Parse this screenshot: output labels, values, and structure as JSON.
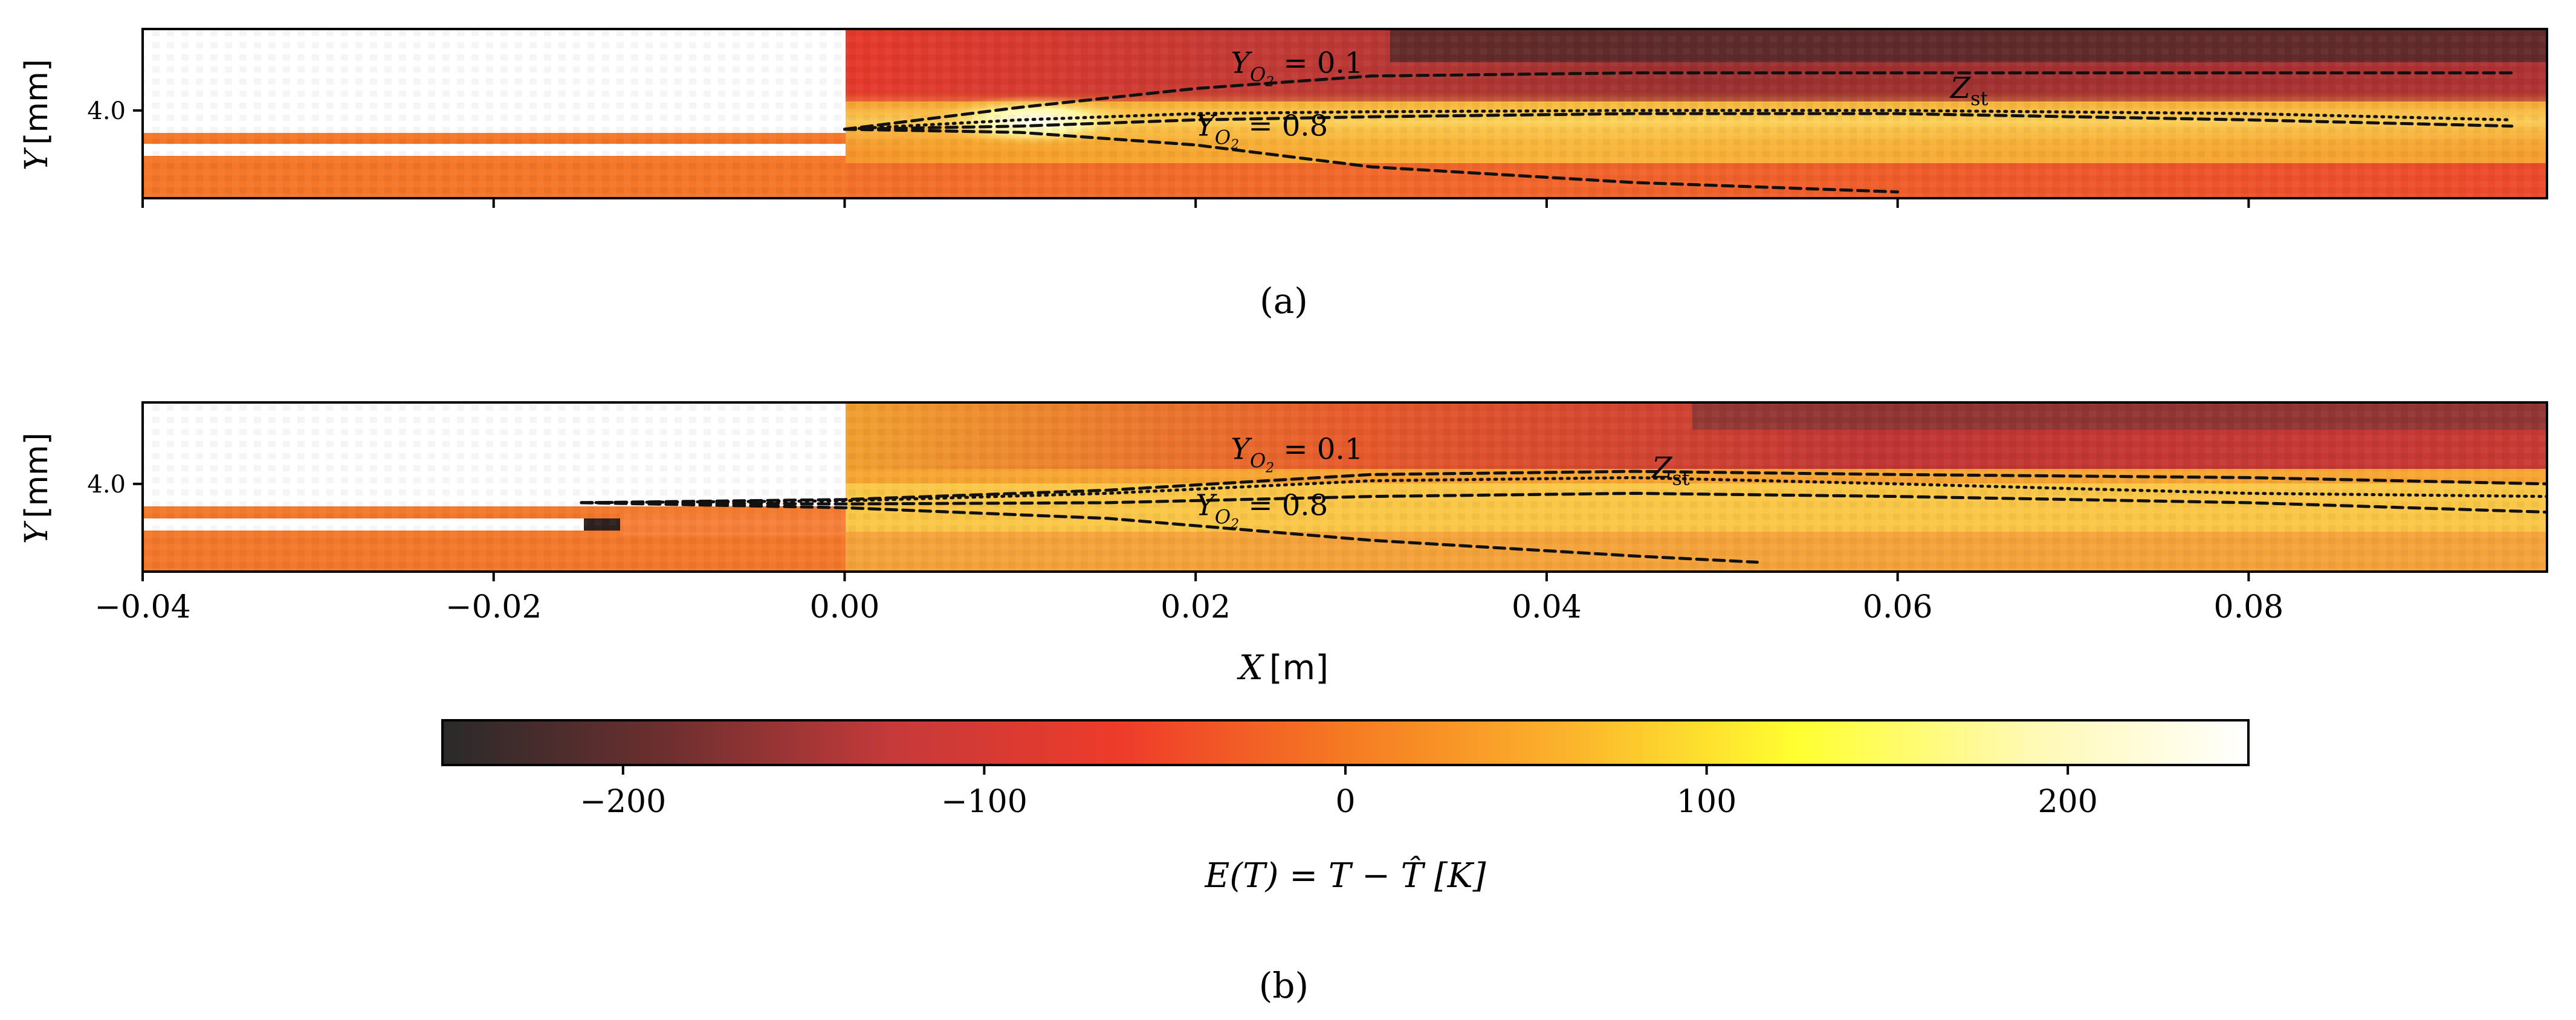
{
  "chart_data": {
    "type": "heatmap",
    "figure_kind": "two stacked error contour maps with shared colorbar",
    "panels": [
      {
        "id": "a",
        "caption": "(a)",
        "xlim": [
          -0.04,
          0.097
        ],
        "ylim": [
          2.6,
          5.3
        ],
        "ylabel": "Y [mm]",
        "ytick_labels": [
          "4.0"
        ],
        "ytick_values": [
          4.0
        ],
        "contour_labels": [
          {
            "text": "Y_O2 = 0.1",
            "x": 0.022,
            "y": 4.6
          },
          {
            "text": "Y_O2 = 0.8",
            "x": 0.02,
            "y": 3.6
          },
          {
            "text": "Z_st",
            "x": 0.063,
            "y": 4.2
          }
        ],
        "contours": [
          {
            "name": "Y_O2 = 0.1",
            "style": "dashed",
            "x": [
              0.0,
              0.01,
              0.02,
              0.03,
              0.045,
              0.06,
              0.08,
              0.095
            ],
            "y": [
              3.7,
              4.05,
              4.35,
              4.55,
              4.6,
              4.6,
              4.6,
              4.6
            ]
          },
          {
            "name": "Z_st",
            "style": "dotted",
            "x": [
              0.0,
              0.01,
              0.02,
              0.03,
              0.045,
              0.06,
              0.08,
              0.095
            ],
            "y": [
              3.7,
              3.85,
              3.95,
              3.98,
              4.0,
              4.0,
              3.95,
              3.85
            ]
          },
          {
            "name": "Y_O2 = 0.8",
            "style": "dashed",
            "x": [
              0.0,
              0.01,
              0.02,
              0.03,
              0.045,
              0.06,
              0.08,
              0.095
            ],
            "y": [
              3.7,
              3.75,
              3.85,
              3.9,
              3.95,
              3.95,
              3.85,
              3.75
            ]
          },
          {
            "name": "lower contour",
            "style": "dashed",
            "x": [
              0.0,
              0.01,
              0.02,
              0.03,
              0.045,
              0.06
            ],
            "y": [
              3.7,
              3.65,
              3.45,
              3.1,
              2.85,
              2.7
            ]
          }
        ]
      },
      {
        "id": "b",
        "caption": "(b)",
        "xlim": [
          -0.04,
          0.097
        ],
        "ylim": [
          2.6,
          5.3
        ],
        "ylabel": "Y [mm]",
        "xlabel": "X [m]",
        "xtick_labels": [
          "−0.04",
          "−0.02",
          "0.00",
          "0.02",
          "0.04",
          "0.06",
          "0.08"
        ],
        "xtick_values": [
          -0.04,
          -0.02,
          0.0,
          0.02,
          0.04,
          0.06,
          0.08
        ],
        "ytick_labels": [
          "4.0"
        ],
        "ytick_values": [
          4.0
        ],
        "contour_labels": [
          {
            "text": "Y_O2 = 0.1",
            "x": 0.022,
            "y": 4.4
          },
          {
            "text": "Y_O2 = 0.8",
            "x": 0.02,
            "y": 3.5
          },
          {
            "text": "Z_st",
            "x": 0.046,
            "y": 4.1
          }
        ],
        "contours": [
          {
            "name": "Y_O2 = 0.1",
            "style": "dashed",
            "x": [
              -0.015,
              0.0,
              0.015,
              0.03,
              0.045,
              0.06,
              0.08,
              0.097
            ],
            "y": [
              3.7,
              3.75,
              3.9,
              4.15,
              4.2,
              4.15,
              4.1,
              4.0
            ]
          },
          {
            "name": "Z_st",
            "style": "dotted",
            "x": [
              -0.015,
              0.0,
              0.015,
              0.03,
              0.045,
              0.06,
              0.08,
              0.097
            ],
            "y": [
              3.7,
              3.73,
              3.85,
              4.05,
              4.1,
              4.0,
              3.85,
              3.8
            ]
          },
          {
            "name": "Y_O2 = 0.8",
            "style": "dashed",
            "x": [
              -0.015,
              0.0,
              0.015,
              0.03,
              0.045,
              0.06,
              0.08,
              0.097
            ],
            "y": [
              3.7,
              3.68,
              3.7,
              3.8,
              3.85,
              3.8,
              3.7,
              3.55
            ]
          },
          {
            "name": "lower contour",
            "style": "dashed",
            "x": [
              -0.015,
              0.0,
              0.015,
              0.03,
              0.045,
              0.052
            ],
            "y": [
              3.7,
              3.62,
              3.45,
              3.1,
              2.85,
              2.75
            ]
          }
        ]
      }
    ],
    "colorbar": {
      "label": "E(T) = T − T̂ [K]",
      "range": [
        -250,
        250
      ],
      "tick_labels": [
        "−200",
        "−100",
        "0",
        "100",
        "200"
      ],
      "tick_values": [
        -200,
        -100,
        0,
        100,
        200
      ],
      "colormap": "hot",
      "stops": [
        "#2a2a2a",
        "#6e2f2f",
        "#c63a3a",
        "#ee3b2a",
        "#f57a22",
        "#fbb52c",
        "#ffff30",
        "#fff9b0",
        "#ffffff"
      ]
    }
  }
}
